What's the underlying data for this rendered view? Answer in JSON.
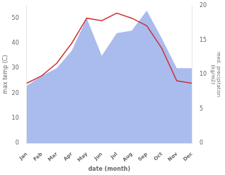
{
  "chart_data": {
    "type": "line",
    "categories": [
      "Jan",
      "Feb",
      "Mar",
      "Apr",
      "May",
      "Jun",
      "Jul",
      "Aug",
      "Sep",
      "Oct",
      "Nov",
      "Dec"
    ],
    "series": [
      {
        "type": "area",
        "color": "#aabbee",
        "values": [
          23,
          27,
          30,
          37,
          50,
          35,
          44,
          45,
          53,
          42,
          30,
          30
        ]
      },
      {
        "type": "line",
        "color": "#cc3333",
        "values": [
          24,
          27,
          32,
          40,
          50,
          49,
          52,
          50,
          47,
          38,
          25,
          24
        ]
      }
    ],
    "xlabel": "date (month)",
    "ylabel": "max temp (C)",
    "y2label": "med. precipitation\n(kg/m2)",
    "ylim": [
      0,
      55
    ],
    "yticks": [
      0,
      10,
      20,
      30,
      40,
      50
    ],
    "y2lim": [
      0,
      20
    ],
    "y2ticks": [
      0,
      5,
      10,
      15,
      20
    ],
    "grid": false
  }
}
